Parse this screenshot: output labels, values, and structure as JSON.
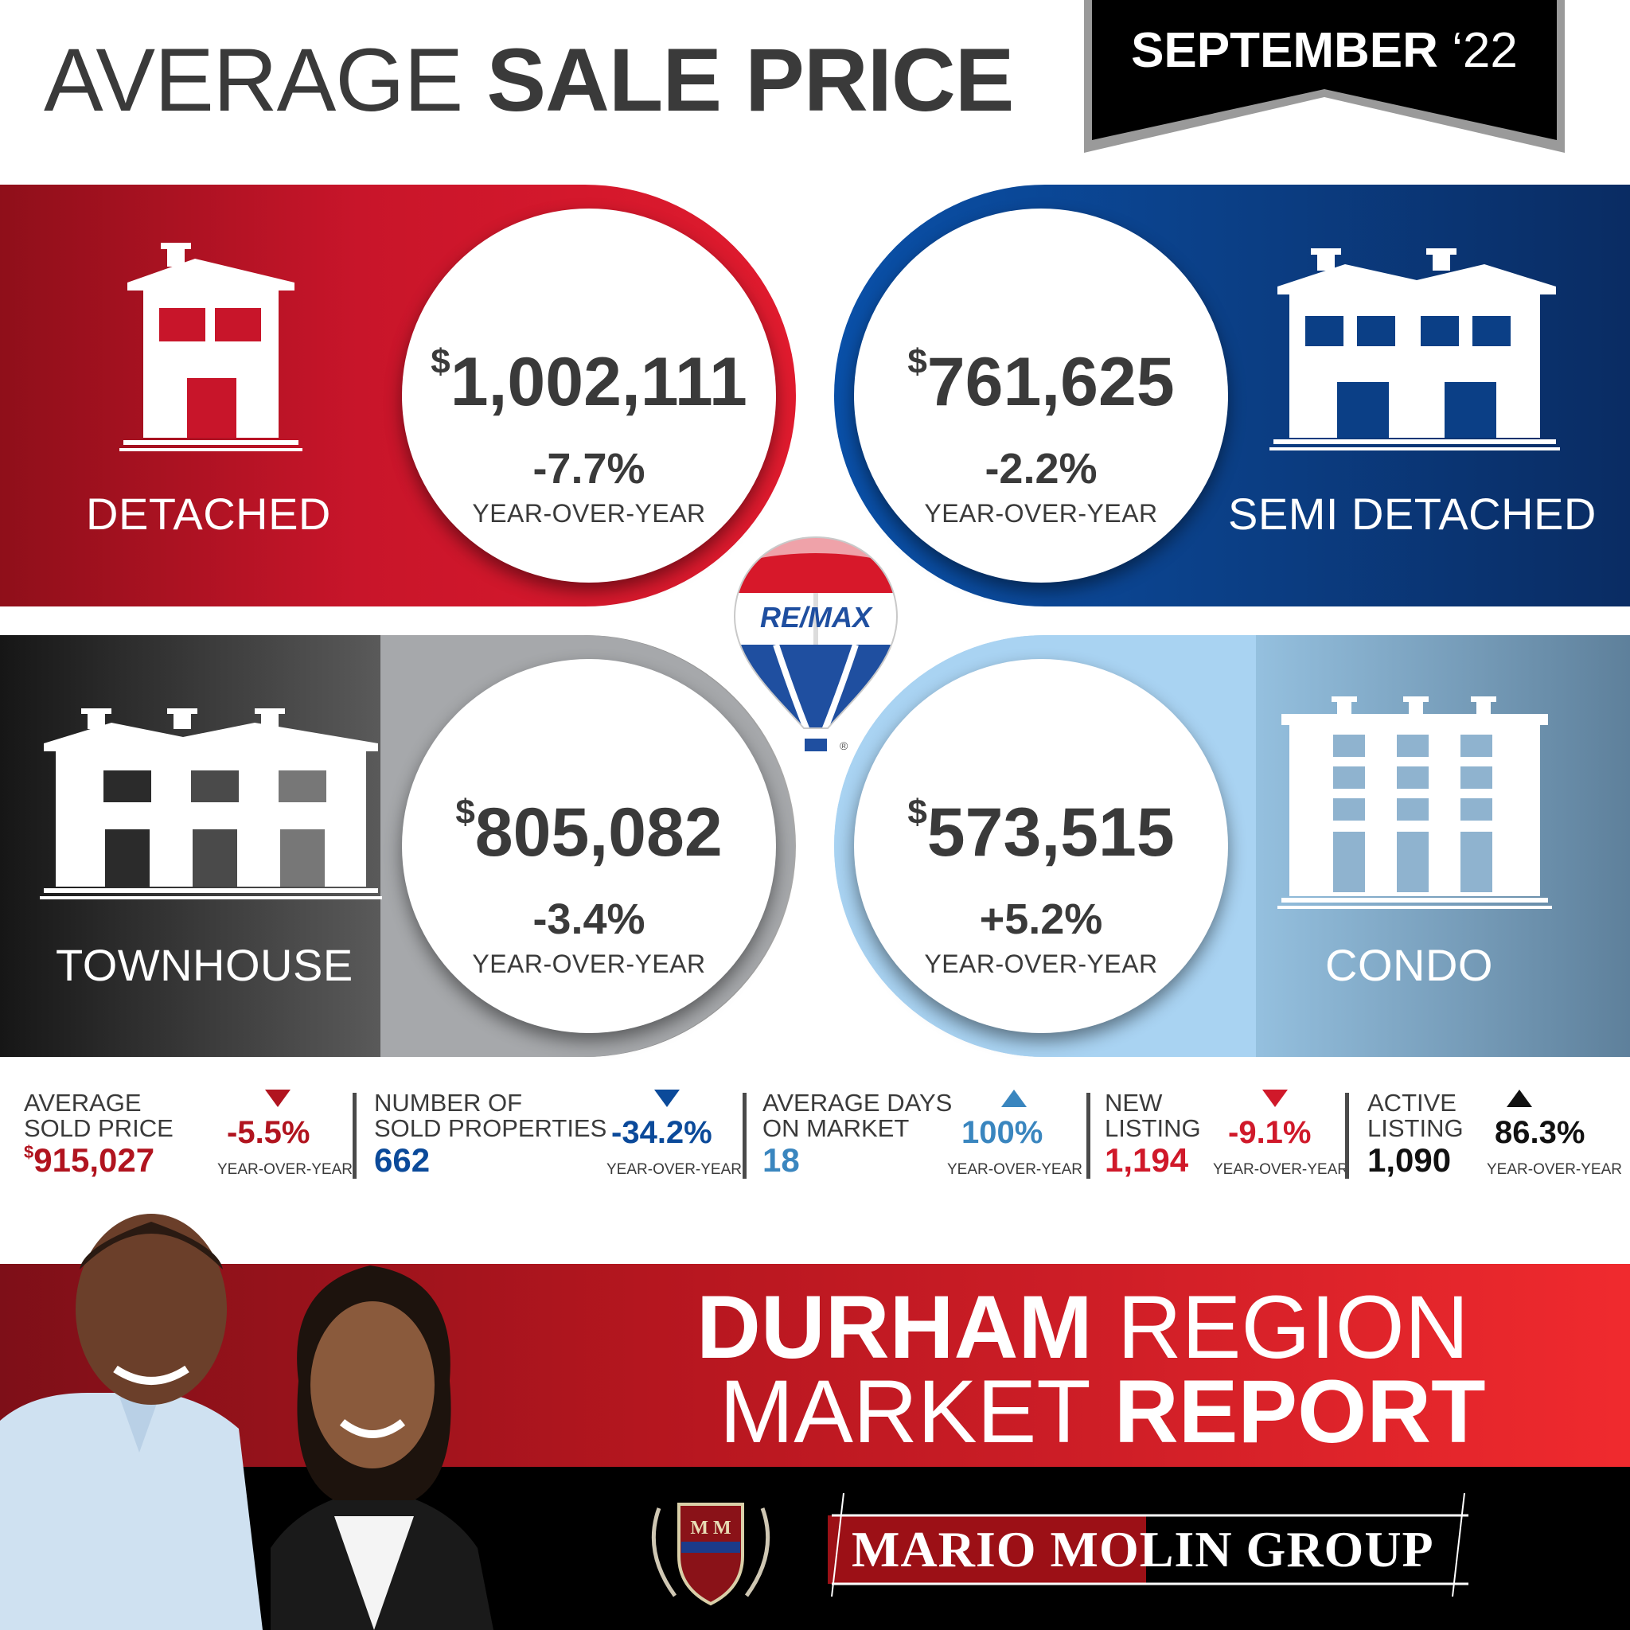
{
  "header": {
    "title_light": "AVERAGE",
    "title_bold": "SALE PRICE",
    "month": "SEPTEMBER",
    "year": "‘22"
  },
  "categories": [
    {
      "key": "detached",
      "name": "DETACHED",
      "currency": "$",
      "price": "1,002,111",
      "change": "-7.7%",
      "change_label": "YEAR-OVER-YEAR",
      "color": "#c8152a"
    },
    {
      "key": "semi",
      "name": "SEMI DETACHED",
      "currency": "$",
      "price": "761,625",
      "change": "-2.2%",
      "change_label": "YEAR-OVER-YEAR",
      "color": "#0b3f86"
    },
    {
      "key": "townhouse",
      "name": "TOWNHOUSE",
      "currency": "$",
      "price": "805,082",
      "change": "-3.4%",
      "change_label": "YEAR-OVER-YEAR",
      "color": "#5d5d5d"
    },
    {
      "key": "condo",
      "name": "CONDO",
      "currency": "$",
      "price": "573,515",
      "change": "+5.2%",
      "change_label": "YEAR-OVER-YEAR",
      "color": "#98c4e3"
    }
  ],
  "logo": {
    "brand": "RE/MAX",
    "mark": "®"
  },
  "stats": [
    {
      "label1": "AVERAGE",
      "label2": "SOLD PRICE",
      "currency": "$",
      "value": "915,027",
      "change": "-5.5%",
      "change_label": "YEAR-OVER-YEAR",
      "direction": "down",
      "value_color": "#b1141f",
      "change_color": "#b1141f"
    },
    {
      "label1": "NUMBER OF",
      "label2": "SOLD PROPERTIES",
      "value": "662",
      "change": "-34.2%",
      "change_label": "YEAR-OVER-YEAR",
      "direction": "down",
      "value_color": "#0b4a9a",
      "change_color": "#0b4a9a"
    },
    {
      "label1": "AVERAGE DAYS",
      "label2": "ON MARKET",
      "value": "18",
      "change": "100%",
      "change_label": "YEAR-OVER-YEAR",
      "direction": "up",
      "value_color": "#3a86bf",
      "change_color": "#3a86bf"
    },
    {
      "label1": "NEW",
      "label2": "LISTING",
      "value": "1,194",
      "change": "-9.1%",
      "change_label": "YEAR-OVER-YEAR",
      "direction": "down",
      "value_color": "#d0192a",
      "change_color": "#d0192a"
    },
    {
      "label1": "ACTIVE",
      "label2": "LISTING",
      "value": "1,090",
      "change": "86.3%",
      "change_label": "YEAR-OVER-YEAR",
      "direction": "up",
      "value_color": "#111111",
      "change_color": "#111111"
    }
  ],
  "banner": {
    "line1_bold": "DURHAM",
    "line1_light": "REGION",
    "line2_light": "MARKET",
    "line2_bold": "REPORT"
  },
  "group": {
    "name": "MARIO MOLIN GROUP",
    "crest_letters": "M M"
  }
}
